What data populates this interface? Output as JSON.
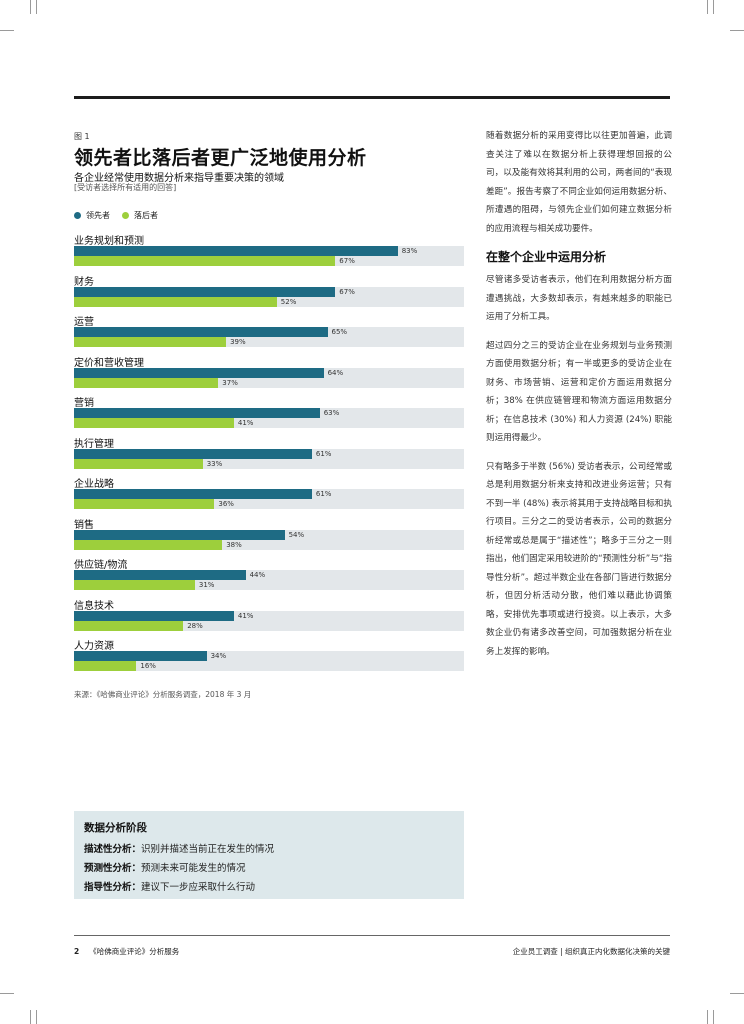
{
  "figure": {
    "label": "图 1",
    "title": "领先者比落后者更广泛地使用分析",
    "subtitle": "各企业经常使用数据分析来指导重要决策的领域",
    "note": "[受访者选择所有适用的回答]",
    "source": "来源：《哈佛商业评论》分析服务调查，2018 年 3 月"
  },
  "chart_data": {
    "type": "bar",
    "orientation": "horizontal",
    "xlim": [
      0,
      100
    ],
    "legend": [
      "领先者",
      "落后者"
    ],
    "colors": {
      "leaders": "#1e6b84",
      "laggards": "#9dcf3c",
      "track": "#e3e7ea"
    },
    "categories": [
      "业务规划和预测",
      "财务",
      "运营",
      "定价和营收管理",
      "营销",
      "执行管理",
      "企业战略",
      "销售",
      "供应链/物流",
      "信息技术",
      "人力资源"
    ],
    "series": [
      {
        "name": "领先者",
        "values": [
          83,
          67,
          65,
          64,
          63,
          61,
          61,
          54,
          44,
          41,
          34
        ]
      },
      {
        "name": "落后者",
        "values": [
          67,
          52,
          39,
          37,
          41,
          33,
          36,
          38,
          31,
          28,
          16
        ]
      }
    ]
  },
  "right_column": {
    "para1": "随着数据分析的采用变得比以往更加普遍，此调查关注了难以在数据分析上获得理想回报的公司，以及能有效将其利用的公司，两者间的“表现差距”。报告考察了不同企业如何运用数据分析、所遭遇的阻碍，与领先企业们如何建立数据分析的应用流程与相关成功要件。",
    "heading": "在整个企业中运用分析",
    "para2": "尽管诸多受访者表示，他们在利用数据分析方面遭遇挑战，大多数却表示，有越来越多的职能已运用了分析工具。",
    "para3": "超过四分之三的受访企业在业务规划与业务预测方面使用数据分析；有一半或更多的受访企业在财务、市场营销、运营和定价方面运用数据分析；38% 在供应链管理和物流方面运用数据分析；在信息技术 (30%) 和人力资源 (24%) 职能则运用得最少。",
    "para4": "只有略多于半数 (56%) 受访者表示，公司经常或总是利用数据分析来支持和改进业务运营；只有不到一半 (48%) 表示将其用于支持战略目标和执行项目。三分之二的受访者表示，公司的数据分析经常或总是属于“描述性”；略多于三分之一则指出，他们固定采用较进阶的“预测性分析”与“指导性分析”。超过半数企业在各部门皆进行数据分析，但因分析活动分散，他们难以藉此协调策略，安排优先事项或进行投资。以上表示，大多数企业仍有诸多改善空间，可加强数据分析在业务上发挥的影响。"
  },
  "callout": {
    "title": "数据分析阶段",
    "items": [
      {
        "term": "描述性分析：",
        "desc": "识别并描述当前正在发生的情况"
      },
      {
        "term": "预测性分析：",
        "desc": "预测未来可能发生的情况"
      },
      {
        "term": "指导性分析：",
        "desc": "建议下一步应采取什么行动"
      }
    ]
  },
  "footer": {
    "page": "2",
    "publication": "《哈佛商业评论》分析服务",
    "right": "企业员工调查 | 组织真正内化数据化决策的关键"
  }
}
